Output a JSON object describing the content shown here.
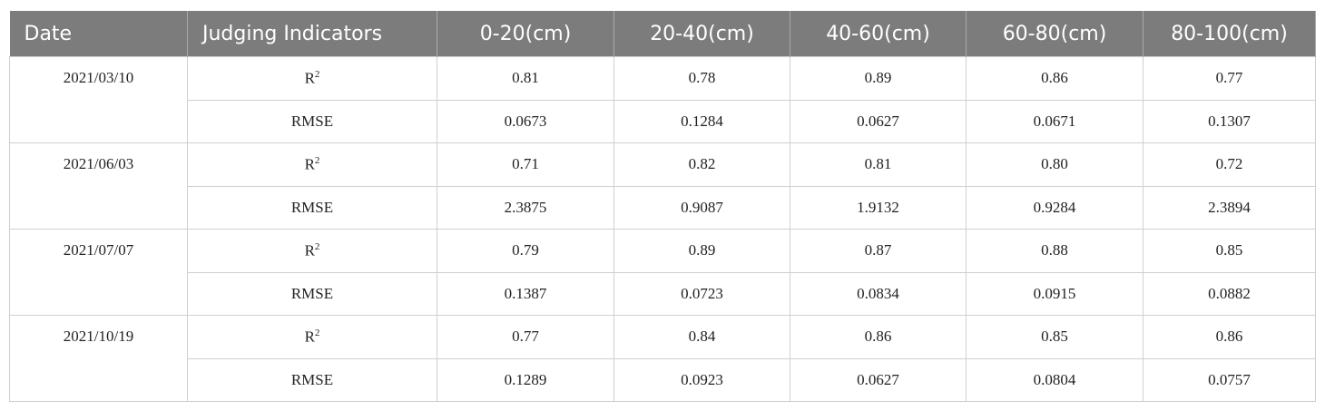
{
  "table": {
    "headers": [
      "Date",
      "Judging Indicators",
      "0-20(cm)",
      "20-40(cm)",
      "40-60(cm)",
      "60-80(cm)",
      "80-100(cm)"
    ],
    "groups": [
      {
        "date": "2021/03/10",
        "rows": [
          {
            "indicator": "R",
            "indicator_sup": "2",
            "values": [
              "0.81",
              "0.78",
              "0.89",
              "0.86",
              "0.77"
            ]
          },
          {
            "indicator": "RMSE",
            "values": [
              "0.0673",
              "0.1284",
              "0.0627",
              "0.0671",
              "0.1307"
            ]
          }
        ]
      },
      {
        "date": "2021/06/03",
        "rows": [
          {
            "indicator": "R",
            "indicator_sup": "2",
            "values": [
              "0.71",
              "0.82",
              "0.81",
              "0.80",
              "0.72"
            ]
          },
          {
            "indicator": "RMSE",
            "values": [
              "2.3875",
              "0.9087",
              "1.9132",
              "0.9284",
              "2.3894"
            ]
          }
        ]
      },
      {
        "date": "2021/07/07",
        "rows": [
          {
            "indicator": "R",
            "indicator_sup": "2",
            "values": [
              "0.79",
              "0.89",
              "0.87",
              "0.88",
              "0.85"
            ]
          },
          {
            "indicator": "RMSE",
            "values": [
              "0.1387",
              "0.0723",
              "0.0834",
              "0.0915",
              "0.0882"
            ]
          }
        ]
      },
      {
        "date": "2021/10/19",
        "rows": [
          {
            "indicator": "R",
            "indicator_sup": "2",
            "values": [
              "0.77",
              "0.84",
              "0.86",
              "0.85",
              "0.86"
            ]
          },
          {
            "indicator": "RMSE",
            "values": [
              "0.1289",
              "0.0923",
              "0.0627",
              "0.0804",
              "0.0757"
            ]
          }
        ]
      }
    ]
  }
}
